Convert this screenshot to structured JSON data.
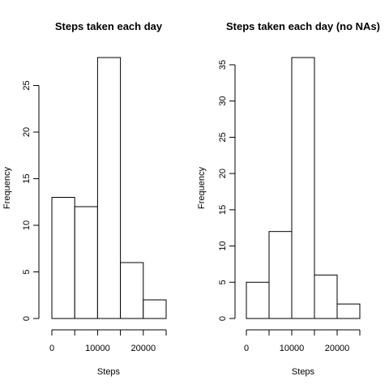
{
  "chart_data": [
    {
      "type": "bar",
      "subtype": "histogram",
      "title": "Steps taken each day",
      "xlabel": "Steps",
      "ylabel": "Frequency",
      "bin_edges": [
        0,
        5000,
        10000,
        15000,
        20000,
        25000
      ],
      "values": [
        13,
        12,
        28,
        6,
        2
      ],
      "xlim": [
        0,
        25000
      ],
      "ylim": [
        0,
        28
      ],
      "xticks": [
        0,
        10000,
        20000
      ],
      "yticks": [
        0,
        5,
        10,
        15,
        20,
        25
      ],
      "grid": false
    },
    {
      "type": "bar",
      "subtype": "histogram",
      "title": "Steps taken each day (no NAs)",
      "xlabel": "Steps",
      "ylabel": "Frequency",
      "bin_edges": [
        0,
        5000,
        10000,
        15000,
        20000,
        25000
      ],
      "values": [
        5,
        12,
        36,
        6,
        2
      ],
      "xlim": [
        0,
        25000
      ],
      "ylim": [
        0,
        36
      ],
      "xticks": [
        0,
        10000,
        20000
      ],
      "yticks": [
        0,
        5,
        10,
        15,
        20,
        25,
        30,
        35
      ],
      "grid": false
    }
  ]
}
